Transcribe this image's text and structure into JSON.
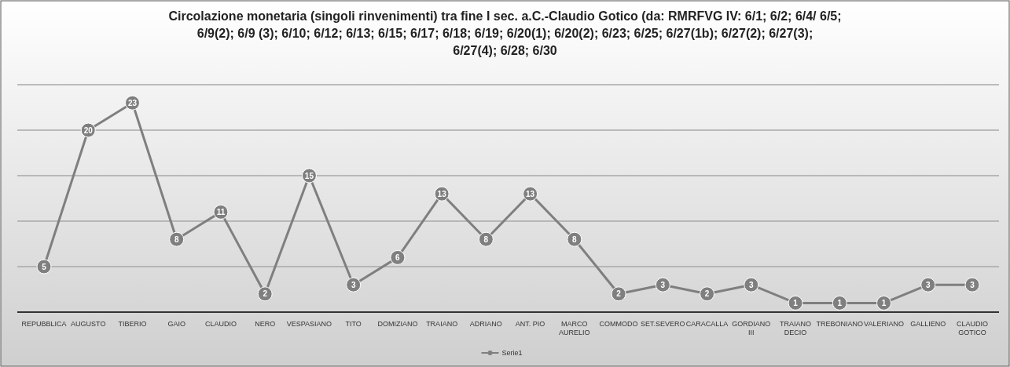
{
  "chart_data": {
    "type": "line",
    "title": "Circolazione monetaria (singoli rinvenimenti) tra fine I sec. a.C.-Claudio Gotico (da: RMRFVG IV: 6/1; 6/2; 6/4/ 6/5; 6/9(2); 6/9 (3); 6/10; 6/12; 6/13; 6/15; 6/17; 6/18; 6/19; 6/20(1); 6/20(2); 6/23; 6/25; 6/27(1b); 6/27(2); 6/27(3); 6/27(4); 6/28; 6/30",
    "categories": [
      "REPUBBLICA",
      "AUGUSTO",
      "TIBERIO",
      "GAIO",
      "CLAUDIO",
      "NERO",
      "VESPASIANO",
      "TITO",
      "DOMIZIANO",
      "TRAIANO",
      "ADRIANO",
      "ANT. PIO",
      "MARCO AURELIO",
      "COMMODO",
      "SET.SEVERO",
      "CARACALLA",
      "GORDIANO III",
      "TRAIANO DECIO",
      "TREBONIANO",
      "VALERIANO",
      "GALLIENO",
      "CLAUDIO GOTICO"
    ],
    "series": [
      {
        "name": "Serie1",
        "color": "#7f7f7f",
        "values": [
          5,
          20,
          23,
          8,
          11,
          2,
          15,
          3,
          6,
          13,
          8,
          13,
          8,
          2,
          3,
          2,
          3,
          1,
          1,
          1,
          3,
          3
        ]
      }
    ],
    "ylim": [
      0,
      25
    ],
    "yticks": [
      {
        "value": 0,
        "label": null
      },
      {
        "value": 5,
        "label": null
      },
      {
        "value": 10,
        "label": null
      },
      {
        "value": 15,
        "label": null
      },
      {
        "value": 20,
        "label": null
      },
      {
        "value": 25,
        "label": null
      }
    ],
    "tick_labels": "x",
    "grid": "y",
    "legend": "bottom",
    "marker": "circle",
    "line_style": "solid",
    "data_labels": true
  }
}
